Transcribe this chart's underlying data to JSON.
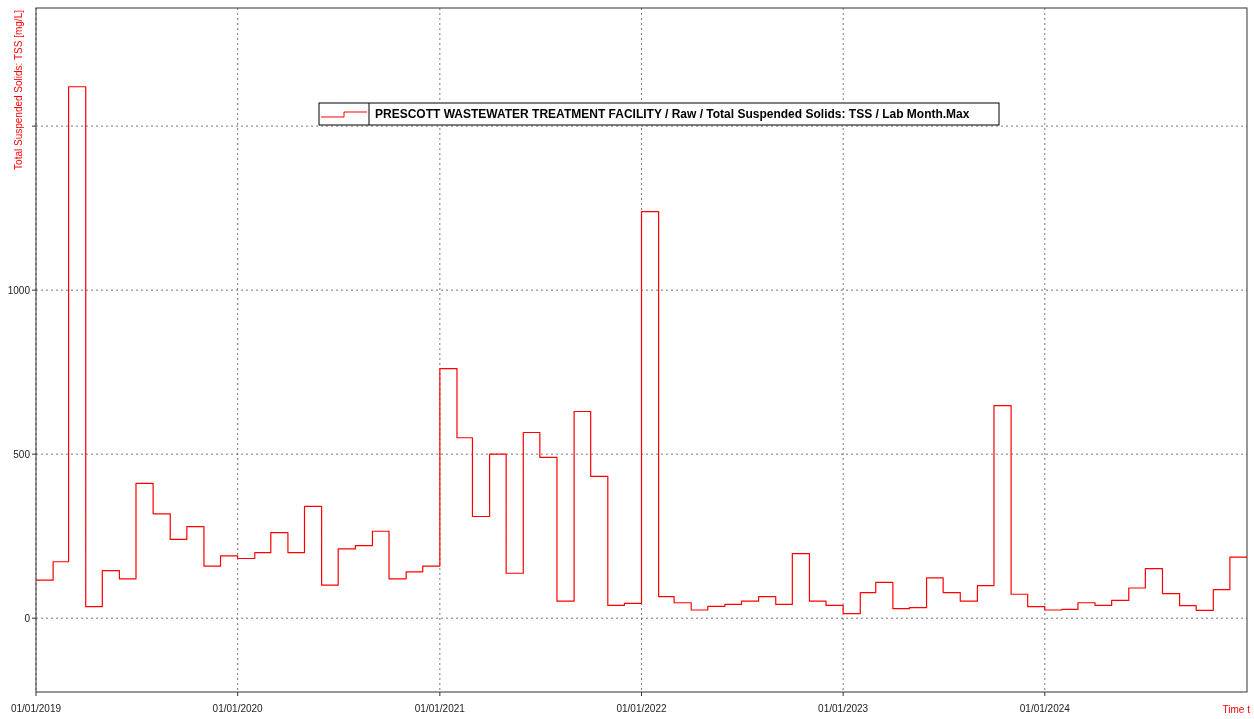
{
  "chart_data": {
    "type": "step",
    "ylabel": "Total Suspended Solids: TSS [mg/L]",
    "xlabel": "Time t",
    "x": [
      "2019-01",
      "2019-02",
      "2019-03",
      "2019-04",
      "2019-05",
      "2019-06",
      "2019-07",
      "2019-08",
      "2019-09",
      "2019-10",
      "2019-11",
      "2019-12",
      "2020-01",
      "2020-02",
      "2020-03",
      "2020-04",
      "2020-05",
      "2020-06",
      "2020-07",
      "2020-08",
      "2020-09",
      "2020-10",
      "2020-11",
      "2020-12",
      "2021-01",
      "2021-02",
      "2021-03",
      "2021-04",
      "2021-05",
      "2021-06",
      "2021-07",
      "2021-08",
      "2021-09",
      "2021-10",
      "2021-11",
      "2021-12",
      "2022-01",
      "2022-02",
      "2022-03",
      "2022-04",
      "2022-05",
      "2022-06",
      "2022-07",
      "2022-08",
      "2022-09",
      "2022-10",
      "2022-11",
      "2022-12",
      "2023-01",
      "2023-02",
      "2023-03",
      "2023-04",
      "2023-05",
      "2023-06",
      "2023-07",
      "2023-08",
      "2023-09",
      "2023-10",
      "2023-11",
      "2023-12",
      "2024-01",
      "2024-02",
      "2024-03",
      "2024-04",
      "2024-05",
      "2024-06",
      "2024-07",
      "2024-08",
      "2024-09",
      "2024-10",
      "2024-11",
      "2024-12",
      "2025-01"
    ],
    "series": [
      {
        "name": "PRESCOTT WASTEWATER TREATMENT FACILITY / Raw / Total Suspended Solids: TSS / Lab Month.Max",
        "color": "#ff0000",
        "values": [
          116,
          172,
          1620,
          35,
          145,
          120,
          411,
          318,
          240,
          279,
          159,
          190,
          182,
          200,
          261,
          200,
          341,
          101,
          211,
          221,
          265,
          120,
          141,
          159,
          761,
          550,
          310,
          500,
          137,
          566,
          490,
          52,
          630,
          432,
          39,
          45,
          1239,
          66,
          47,
          25,
          36,
          42,
          52,
          66,
          42,
          197,
          52,
          39,
          14,
          78,
          109,
          29,
          32,
          123,
          78,
          52,
          99,
          648,
          73,
          35,
          25,
          27,
          47,
          39,
          54,
          92,
          151,
          75,
          38,
          24,
          87,
          186,
          186
        ]
      }
    ],
    "xlim": [
      "2019-01-01",
      "2025-01-01"
    ],
    "xticks": [
      {
        "value": "2019-01-01",
        "label": "01/01/2019"
      },
      {
        "value": "2020-01-01",
        "label": "01/01/2020"
      },
      {
        "value": "2021-01-01",
        "label": "01/01/2021"
      },
      {
        "value": "2022-01-01",
        "label": "01/01/2022"
      },
      {
        "value": "2023-01-01",
        "label": "01/01/2023"
      },
      {
        "value": "2024-01-01",
        "label": "01/01/2024"
      }
    ],
    "ylim": [
      -225,
      1860
    ],
    "yticks": [
      0,
      500,
      1000,
      {
        "value": 1500,
        "label": null
      }
    ],
    "grid": true,
    "line_style": "solid",
    "legend": "top"
  }
}
